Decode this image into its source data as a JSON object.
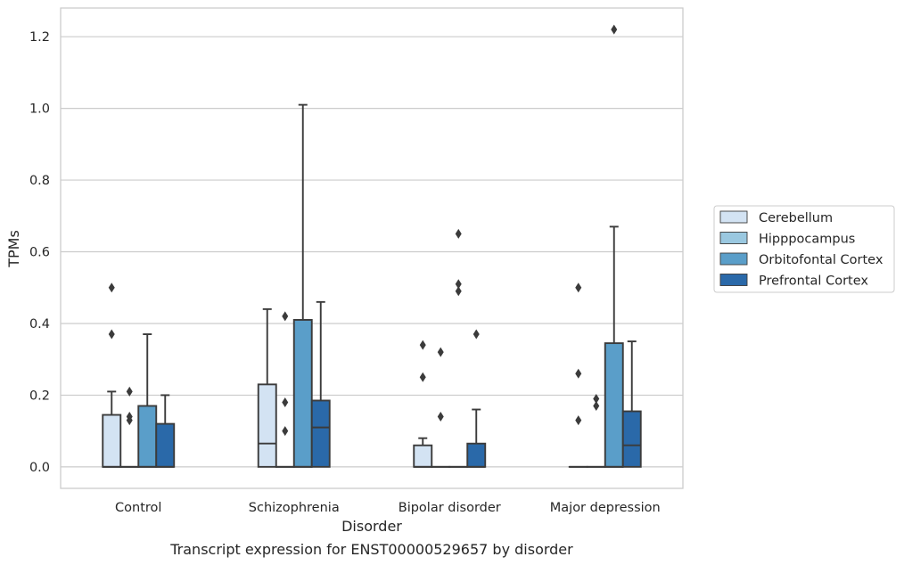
{
  "chart_data": {
    "type": "box",
    "title": "",
    "caption": "Transcript expression for ENST00000529657 by disorder",
    "xlabel": "Disorder",
    "ylabel": "TPMs",
    "ylim": [
      -0.06,
      1.28
    ],
    "yticks": [
      "0.0",
      "0.2",
      "0.4",
      "0.6",
      "0.8",
      "1.0",
      "1.2"
    ],
    "grid": "horizontal",
    "legend_position": "right",
    "categories": [
      "Control",
      "Schizophrenia",
      "Bipolar disorder",
      "Major depression"
    ],
    "series": [
      {
        "name": "Cerebellum",
        "color": "#d3e3f3",
        "boxes": [
          {
            "min": 0.0,
            "q1": 0.0,
            "median": 0.0,
            "q3": 0.145,
            "max": 0.21,
            "outliers": [
              0.37,
              0.5
            ]
          },
          {
            "min": 0.0,
            "q1": 0.0,
            "median": 0.065,
            "q3": 0.23,
            "max": 0.44,
            "outliers": []
          },
          {
            "min": 0.0,
            "q1": 0.0,
            "median": 0.0,
            "q3": 0.06,
            "max": 0.08,
            "outliers": [
              0.25,
              0.34
            ]
          },
          {
            "min": 0.0,
            "q1": 0.0,
            "median": 0.0,
            "q3": 0.0,
            "max": 0.0,
            "outliers": [
              0.13,
              0.26,
              0.5
            ]
          }
        ]
      },
      {
        "name": "Hipppocampus",
        "color": "#9ac8e0",
        "boxes": [
          {
            "min": 0.0,
            "q1": 0.0,
            "median": 0.0,
            "q3": 0.0,
            "max": 0.0,
            "outliers": [
              0.13,
              0.14,
              0.21
            ]
          },
          {
            "min": 0.0,
            "q1": 0.0,
            "median": 0.0,
            "q3": 0.0,
            "max": 0.0,
            "outliers": [
              0.1,
              0.18,
              0.42
            ]
          },
          {
            "min": 0.0,
            "q1": 0.0,
            "median": 0.0,
            "q3": 0.0,
            "max": 0.0,
            "outliers": [
              0.14,
              0.32
            ]
          },
          {
            "min": 0.0,
            "q1": 0.0,
            "median": 0.0,
            "q3": 0.0,
            "max": 0.0,
            "outliers": [
              0.17,
              0.19
            ]
          }
        ]
      },
      {
        "name": "Orbitofontal Cortex",
        "color": "#5a9ec9",
        "boxes": [
          {
            "min": 0.0,
            "q1": 0.0,
            "median": 0.0,
            "q3": 0.17,
            "max": 0.37,
            "outliers": []
          },
          {
            "min": 0.0,
            "q1": 0.0,
            "median": 0.0,
            "q3": 0.41,
            "max": 1.01,
            "outliers": []
          },
          {
            "min": 0.0,
            "q1": 0.0,
            "median": 0.0,
            "q3": 0.0,
            "max": 0.0,
            "outliers": [
              0.49,
              0.51,
              0.65
            ]
          },
          {
            "min": 0.0,
            "q1": 0.0,
            "median": 0.0,
            "q3": 0.345,
            "max": 0.67,
            "outliers": [
              1.22
            ]
          }
        ]
      },
      {
        "name": "Prefrontal Cortex",
        "color": "#2a69a9",
        "boxes": [
          {
            "min": 0.0,
            "q1": 0.0,
            "median": 0.0,
            "q3": 0.12,
            "max": 0.2,
            "outliers": []
          },
          {
            "min": 0.0,
            "q1": 0.0,
            "median": 0.11,
            "q3": 0.185,
            "max": 0.46,
            "outliers": []
          },
          {
            "min": 0.0,
            "q1": 0.0,
            "median": 0.0,
            "q3": 0.065,
            "max": 0.16,
            "outliers": [
              0.37
            ]
          },
          {
            "min": 0.0,
            "q1": 0.0,
            "median": 0.06,
            "q3": 0.155,
            "max": 0.35,
            "outliers": []
          }
        ]
      }
    ]
  }
}
